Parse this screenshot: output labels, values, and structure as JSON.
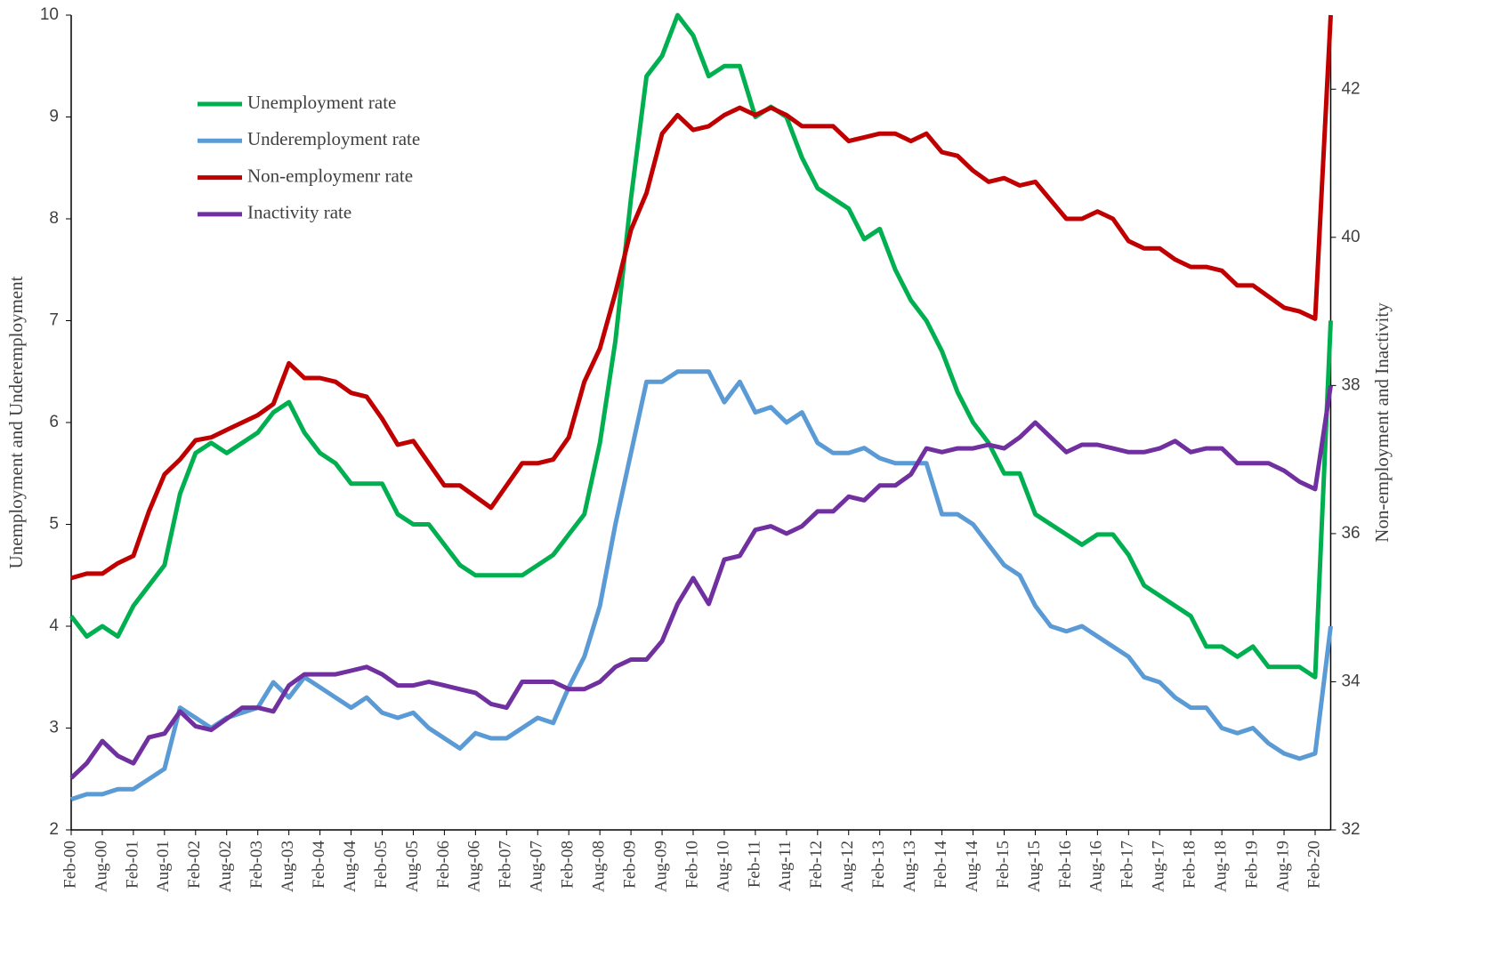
{
  "chart_data": {
    "type": "line",
    "ylabel": "Unemployment and Underemployment",
    "y2label": "Non-employment and Inactivity",
    "categories": [
      "Feb-00",
      null,
      "Aug-00",
      null,
      "Feb-01",
      null,
      "Aug-01",
      null,
      "Feb-02",
      null,
      "Aug-02",
      null,
      "Feb-03",
      null,
      "Aug-03",
      null,
      "Feb-04",
      null,
      "Aug-04",
      null,
      "Feb-05",
      null,
      "Aug-05",
      null,
      "Feb-06",
      null,
      "Aug-06",
      null,
      "Feb-07",
      null,
      "Aug-07",
      null,
      "Feb-08",
      null,
      "Aug-08",
      null,
      "Feb-09",
      null,
      "Aug-09",
      null,
      "Feb-10",
      null,
      "Aug-10",
      null,
      "Feb-11",
      null,
      "Aug-11",
      null,
      "Feb-12",
      null,
      "Aug-12",
      null,
      "Feb-13",
      null,
      "Aug-13",
      null,
      "Feb-14",
      null,
      "Aug-14",
      null,
      "Feb-15",
      null,
      "Aug-15",
      null,
      "Feb-16",
      null,
      "Aug-16",
      null,
      "Feb-17",
      null,
      "Aug-17",
      null,
      "Feb-18",
      null,
      "Aug-18",
      null,
      "Feb-19",
      null,
      "Aug-19",
      null,
      "Feb-20",
      null
    ],
    "ylim": [
      2,
      10
    ],
    "yticks": [
      2,
      3,
      4,
      5,
      6,
      7,
      8,
      9,
      10
    ],
    "y2lim": [
      32,
      43
    ],
    "y2ticks": [
      32,
      34,
      36,
      38,
      40,
      42
    ],
    "legend": "upper left",
    "series": [
      {
        "name": "Unemployment rate",
        "color": "#00b050",
        "values": [
          4.1,
          3.9,
          4.0,
          3.9,
          4.2,
          4.4,
          4.6,
          5.3,
          5.7,
          5.8,
          5.7,
          5.8,
          5.9,
          6.1,
          6.2,
          5.9,
          5.7,
          5.6,
          5.4,
          5.4,
          5.4,
          5.1,
          5.0,
          5.0,
          4.8,
          4.6,
          4.5,
          4.5,
          4.5,
          4.5,
          4.6,
          4.7,
          4.9,
          5.1,
          5.8,
          6.8,
          8.2,
          9.4,
          9.6,
          10.0,
          9.8,
          9.4,
          9.5,
          9.5,
          9.0,
          9.1,
          9.0,
          8.6,
          8.3,
          8.2,
          8.1,
          7.8,
          7.9,
          7.5,
          7.2,
          7.0,
          6.7,
          6.3,
          6.0,
          5.8,
          5.5,
          5.5,
          5.1,
          5.0,
          4.9,
          4.8,
          4.9,
          4.9,
          4.7,
          4.4,
          4.3,
          4.2,
          4.1,
          3.8,
          3.8,
          3.7,
          3.8,
          3.6,
          3.6,
          3.6,
          3.5,
          7.0
        ]
      },
      {
        "name": "Underemployment rate",
        "color": "#5b9bd5",
        "values": [
          2.3,
          2.35,
          2.35,
          2.4,
          2.4,
          2.5,
          2.6,
          3.2,
          3.1,
          3.0,
          3.1,
          3.15,
          3.2,
          3.45,
          3.3,
          3.5,
          3.4,
          3.3,
          3.2,
          3.3,
          3.15,
          3.1,
          3.15,
          3.0,
          2.9,
          2.8,
          2.95,
          2.9,
          2.9,
          3.0,
          3.1,
          3.05,
          3.4,
          3.7,
          4.2,
          5.0,
          5.7,
          6.4,
          6.4,
          6.5,
          6.5,
          6.5,
          6.2,
          6.4,
          6.1,
          6.15,
          6.0,
          6.1,
          5.8,
          5.7,
          5.7,
          5.75,
          5.65,
          5.6,
          5.6,
          5.6,
          5.1,
          5.1,
          5.0,
          4.8,
          4.6,
          4.5,
          4.2,
          4.0,
          3.95,
          4.0,
          3.9,
          3.8,
          3.7,
          3.5,
          3.45,
          3.3,
          3.2,
          3.2,
          3.0,
          2.95,
          3.0,
          2.85,
          2.75,
          2.7,
          2.75,
          4.0
        ]
      },
      {
        "name": "Non-employmenr rate",
        "color": "#c00000",
        "axis": "y2",
        "values": [
          35.4,
          35.46,
          35.46,
          35.6,
          35.7,
          36.3,
          36.8,
          37.0,
          37.26,
          37.3,
          37.4,
          37.5,
          37.6,
          37.75,
          38.3,
          38.1,
          38.1,
          38.05,
          37.9,
          37.85,
          37.55,
          37.2,
          37.25,
          36.95,
          36.65,
          36.65,
          36.5,
          36.35,
          36.65,
          36.95,
          36.95,
          37.0,
          37.3,
          38.05,
          38.5,
          39.25,
          40.1,
          40.6,
          41.4,
          41.65,
          41.45,
          41.5,
          41.65,
          41.75,
          41.65,
          41.75,
          41.65,
          41.5,
          41.5,
          41.5,
          41.3,
          41.35,
          41.4,
          41.4,
          41.3,
          41.4,
          41.15,
          41.1,
          40.9,
          40.75,
          40.8,
          40.7,
          40.75,
          40.5,
          40.25,
          40.25,
          40.35,
          40.25,
          39.95,
          39.85,
          39.85,
          39.7,
          39.6,
          39.6,
          39.55,
          39.35,
          39.35,
          39.2,
          39.05,
          39.0,
          38.9,
          43
        ]
      },
      {
        "name": "Inactivity rate",
        "color": "#7030a0",
        "axis": "y2",
        "values": [
          32.7,
          32.9,
          33.2,
          33.0,
          32.9,
          33.25,
          33.3,
          33.6,
          33.4,
          33.35,
          33.5,
          33.65,
          33.65,
          33.6,
          33.95,
          34.1,
          34.1,
          34.1,
          34.15,
          34.2,
          34.1,
          33.95,
          33.95,
          34.0,
          33.95,
          33.9,
          33.85,
          33.7,
          33.65,
          34.0,
          34.0,
          34.0,
          33.9,
          33.9,
          34.0,
          34.2,
          34.3,
          34.3,
          34.55,
          35.05,
          35.4,
          35.05,
          35.65,
          35.7,
          36.05,
          36.1,
          36.0,
          36.1,
          36.3,
          36.3,
          36.5,
          36.45,
          36.65,
          36.65,
          36.8,
          37.15,
          37.1,
          37.15,
          37.15,
          37.2,
          37.15,
          37.3,
          37.5,
          37.3,
          37.1,
          37.2,
          37.2,
          37.15,
          37.1,
          37.1,
          37.15,
          37.25,
          37.1,
          37.15,
          37.15,
          36.95,
          36.95,
          36.95,
          36.85,
          36.7,
          36.6,
          38
        ]
      }
    ]
  }
}
